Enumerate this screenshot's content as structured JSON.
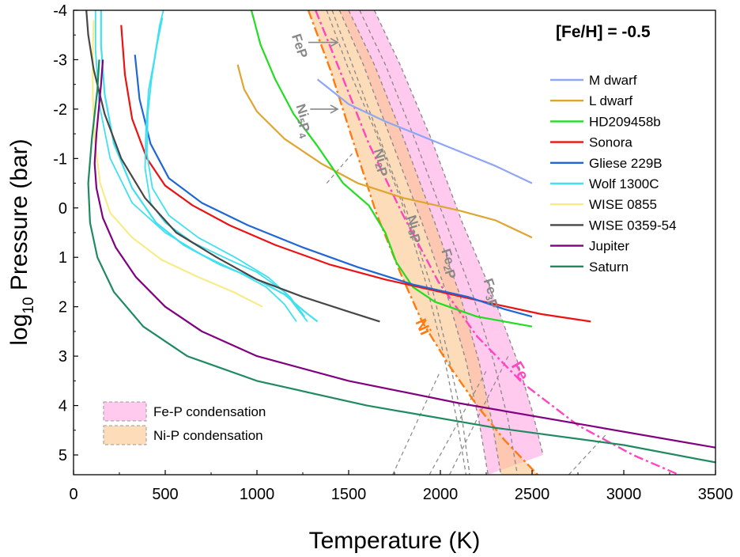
{
  "chart_data": {
    "type": "line",
    "title": "[Fe/H] = -0.5",
    "xlabel": "Temperature (K)",
    "ylabel": {
      "main": "log",
      "sub": "10",
      "rest": " Pressure (bar)"
    },
    "xlim": [
      0,
      3500
    ],
    "ylim": [
      -4,
      5.4
    ],
    "y_inverted": true,
    "x_ticks": [
      0,
      500,
      1000,
      1500,
      2000,
      2500,
      3000,
      3500
    ],
    "y_ticks": [
      -4,
      -3,
      -2,
      -1,
      0,
      1,
      2,
      3,
      4,
      5
    ],
    "series": [
      {
        "name": "M dwarf",
        "color": "#8fa5f5",
        "points": [
          [
            1330,
            -2.6
          ],
          [
            1500,
            -2.1
          ],
          [
            1700,
            -1.75
          ],
          [
            1900,
            -1.45
          ],
          [
            2100,
            -1.15
          ],
          [
            2300,
            -0.85
          ],
          [
            2500,
            -0.5
          ]
        ]
      },
      {
        "name": "L dwarf",
        "color": "#e0a530",
        "points": [
          [
            895,
            -2.9
          ],
          [
            930,
            -2.4
          ],
          [
            1000,
            -1.95
          ],
          [
            1150,
            -1.4
          ],
          [
            1350,
            -0.9
          ],
          [
            1550,
            -0.5
          ],
          [
            1800,
            -0.2
          ],
          [
            2100,
            0.05
          ],
          [
            2300,
            0.25
          ],
          [
            2500,
            0.6
          ]
        ]
      },
      {
        "name": "HD209458b",
        "color": "#22dd22",
        "points": [
          [
            970,
            -4
          ],
          [
            1020,
            -3.3
          ],
          [
            1100,
            -2.6
          ],
          [
            1200,
            -1.9
          ],
          [
            1330,
            -1.25
          ],
          [
            1470,
            -0.5
          ],
          [
            1610,
            -0.05
          ],
          [
            1700,
            0.5
          ],
          [
            1760,
            1.1
          ],
          [
            1850,
            1.6
          ],
          [
            1970,
            1.9
          ],
          [
            2200,
            2.2
          ],
          [
            2500,
            2.4
          ]
        ]
      },
      {
        "name": "Sonora",
        "color": "#ee1111",
        "points": [
          [
            260,
            -3.7
          ],
          [
            280,
            -2.7
          ],
          [
            320,
            -1.8
          ],
          [
            400,
            -1.0
          ],
          [
            500,
            -0.45
          ],
          [
            650,
            -0.05
          ],
          [
            850,
            0.35
          ],
          [
            1100,
            0.75
          ],
          [
            1400,
            1.15
          ],
          [
            1700,
            1.45
          ],
          [
            2000,
            1.7
          ],
          [
            2300,
            1.95
          ],
          [
            2550,
            2.15
          ],
          [
            2820,
            2.3
          ]
        ]
      },
      {
        "name": "Gliese 229B",
        "color": "#1f66d6",
        "points": [
          [
            335,
            -3.1
          ],
          [
            360,
            -2.2
          ],
          [
            420,
            -1.3
          ],
          [
            520,
            -0.6
          ],
          [
            700,
            -0.1
          ],
          [
            950,
            0.35
          ],
          [
            1250,
            0.8
          ],
          [
            1550,
            1.2
          ],
          [
            1850,
            1.55
          ],
          [
            2150,
            1.8
          ],
          [
            2350,
            2.05
          ],
          [
            2500,
            2.2
          ]
        ]
      },
      {
        "name": "Wolf 1300C",
        "color": "#40e0f0",
        "points": [
          [
            150,
            -4
          ],
          [
            150,
            -3.3
          ],
          [
            170,
            -2.3
          ],
          [
            220,
            -1.3
          ],
          [
            320,
            -0.4
          ],
          [
            450,
            0.3
          ],
          [
            600,
            0.75
          ],
          [
            800,
            1.15
          ],
          [
            1000,
            1.45
          ],
          [
            1150,
            1.75
          ],
          [
            1260,
            2.1
          ],
          [
            1330,
            2.3
          ]
        ],
        "extra": [
          [
            [
              120,
              -4
            ],
            [
              120,
              -3.2
            ],
            [
              140,
              -2.1
            ],
            [
              200,
              -1.0
            ],
            [
              320,
              -0.1
            ],
            [
              500,
              0.5
            ],
            [
              700,
              0.95
            ],
            [
              900,
              1.3
            ],
            [
              1050,
              1.6
            ],
            [
              1150,
              1.95
            ],
            [
              1215,
              2.3
            ]
          ],
          [
            [
              490,
              -4
            ],
            [
              470,
              -3.7
            ],
            [
              440,
              -3
            ],
            [
              410,
              -2.4
            ],
            [
              395,
              -1.6
            ],
            [
              390,
              -0.8
            ],
            [
              420,
              -0.1
            ],
            [
              500,
              0.3
            ],
            [
              650,
              0.7
            ],
            [
              850,
              1.05
            ],
            [
              1000,
              1.3
            ],
            [
              1150,
              1.7
            ],
            [
              1275,
              2.3
            ]
          ],
          [
            [
              485,
              -3.85
            ],
            [
              455,
              -3.3
            ],
            [
              425,
              -2.6
            ],
            [
              405,
              -1.9
            ],
            [
              400,
              -1.1
            ],
            [
              430,
              -0.4
            ],
            [
              520,
              0.15
            ],
            [
              680,
              0.6
            ],
            [
              880,
              1.0
            ],
            [
              1060,
              1.4
            ],
            [
              1180,
              1.8
            ],
            [
              1260,
              2.2
            ]
          ]
        ]
      },
      {
        "name": "WISE 0855",
        "color": "#f7ec88",
        "points": [
          [
            110,
            -3.8
          ],
          [
            105,
            -3.2
          ],
          [
            105,
            -2.3
          ],
          [
            115,
            -1.4
          ],
          [
            145,
            -0.5
          ],
          [
            200,
            0.1
          ],
          [
            320,
            0.6
          ],
          [
            480,
            1.05
          ],
          [
            680,
            1.4
          ],
          [
            870,
            1.7
          ],
          [
            1030,
            2.0
          ]
        ]
      },
      {
        "name": "WISE 0359-54",
        "color": "#474747",
        "points": [
          [
            70,
            -4
          ],
          [
            80,
            -3.5
          ],
          [
            110,
            -2.8
          ],
          [
            170,
            -1.9
          ],
          [
            260,
            -1.0
          ],
          [
            390,
            -0.2
          ],
          [
            560,
            0.5
          ],
          [
            780,
            1.0
          ],
          [
            1000,
            1.45
          ],
          [
            1250,
            1.8
          ],
          [
            1500,
            2.1
          ],
          [
            1670,
            2.3
          ]
        ]
      },
      {
        "name": "Jupiter",
        "color": "#800080",
        "points": [
          [
            160,
            -3.0
          ],
          [
            150,
            -2.5
          ],
          [
            125,
            -1.5
          ],
          [
            115,
            -0.9
          ],
          [
            125,
            -0.4
          ],
          [
            160,
            0.2
          ],
          [
            230,
            0.8
          ],
          [
            340,
            1.4
          ],
          [
            500,
            2.0
          ],
          [
            700,
            2.5
          ],
          [
            1000,
            3.0
          ],
          [
            1500,
            3.5
          ],
          [
            2100,
            3.95
          ],
          [
            2800,
            4.4
          ],
          [
            3500,
            4.85
          ]
        ]
      },
      {
        "name": "Saturn",
        "color": "#1f8a60",
        "points": [
          [
            140,
            -3.0
          ],
          [
            130,
            -2.4
          ],
          [
            100,
            -1.4
          ],
          [
            80,
            -0.5
          ],
          [
            90,
            0.3
          ],
          [
            130,
            1.0
          ],
          [
            220,
            1.7
          ],
          [
            380,
            2.4
          ],
          [
            620,
            3.0
          ],
          [
            1000,
            3.5
          ],
          [
            1600,
            4.0
          ],
          [
            2300,
            4.45
          ],
          [
            3000,
            4.8
          ],
          [
            3500,
            5.15
          ]
        ]
      }
    ],
    "condensation_curves": [
      {
        "name": "FeP",
        "color": "#888888",
        "style": "dash",
        "points": [
          [
            1380,
            -4
          ],
          [
            1500,
            -2.8
          ],
          [
            1640,
            -1.6
          ],
          [
            1790,
            -0.1
          ],
          [
            1920,
            1.5
          ],
          [
            2020,
            3.0
          ],
          [
            2090,
            4.3
          ],
          [
            2140,
            5.4
          ]
        ]
      },
      {
        "name": "Ni5P4",
        "color": "#888888",
        "style": "dash",
        "points": [
          [
            1410,
            -4
          ],
          [
            1520,
            -2.9
          ],
          [
            1660,
            -1.5
          ],
          [
            1820,
            0.1
          ],
          [
            1960,
            1.7
          ],
          [
            2050,
            3.1
          ],
          [
            2120,
            4.3
          ],
          [
            2160,
            5.4
          ]
        ]
      },
      {
        "name": "Ni2P",
        "color": "#888888",
        "style": "dash",
        "points": [
          [
            1450,
            -4
          ],
          [
            1580,
            -2.9
          ],
          [
            1730,
            -1.4
          ],
          [
            1900,
            0.3
          ],
          [
            2040,
            1.8
          ],
          [
            2140,
            3.1
          ],
          [
            2210,
            4.3
          ],
          [
            2260,
            5.4
          ]
        ]
      },
      {
        "name": "Ni3P",
        "color": "#888888",
        "style": "dash",
        "points": [
          [
            1500,
            -4
          ],
          [
            1640,
            -2.9
          ],
          [
            1800,
            -1.4
          ],
          [
            1970,
            0.3
          ],
          [
            2110,
            1.8
          ],
          [
            2210,
            3.1
          ],
          [
            2280,
            4.3
          ],
          [
            2330,
            5.4
          ]
        ]
      },
      {
        "name": "Fe2P",
        "color": "#888888",
        "style": "dash",
        "points": [
          [
            1560,
            -4
          ],
          [
            1700,
            -2.9
          ],
          [
            1860,
            -1.4
          ],
          [
            2030,
            0.3
          ],
          [
            2180,
            1.8
          ],
          [
            2290,
            3.1
          ],
          [
            2370,
            4.3
          ],
          [
            2420,
            5.4
          ]
        ]
      },
      {
        "name": "Fe3P",
        "color": "#888888",
        "style": "dash",
        "points": [
          [
            1640,
            -4
          ],
          [
            1780,
            -2.9
          ],
          [
            1950,
            -1.4
          ],
          [
            2120,
            0.3
          ],
          [
            2290,
            1.8
          ],
          [
            2420,
            3.1
          ],
          [
            2500,
            4.1
          ],
          [
            2560,
            5.0
          ]
        ]
      },
      {
        "name": "Ni",
        "color": "#ff7b10",
        "style": "dashdot",
        "points": [
          [
            1280,
            -4
          ],
          [
            1400,
            -2.8
          ],
          [
            1520,
            -1.4
          ],
          [
            1650,
            0.1
          ],
          [
            1780,
            1.3
          ],
          [
            1900,
            2.3
          ],
          [
            2050,
            3.2
          ],
          [
            2200,
            4.0
          ],
          [
            2350,
            4.7
          ],
          [
            2530,
            5.4
          ]
        ]
      },
      {
        "name": "Fe",
        "color": "#ff45c0",
        "style": "dashdot",
        "points": [
          [
            1320,
            -4
          ],
          [
            1450,
            -2.8
          ],
          [
            1610,
            -1.3
          ],
          [
            1790,
            0.1
          ],
          [
            1990,
            1.5
          ],
          [
            2200,
            2.6
          ],
          [
            2450,
            3.55
          ],
          [
            2750,
            4.4
          ],
          [
            3050,
            5.0
          ],
          [
            3300,
            5.4
          ]
        ]
      }
    ],
    "guide_lines": [
      [
        [
          1380,
          -0.5
        ],
        [
          1520,
          -1.1
        ]
      ],
      [
        [
          1740,
          5.4
        ],
        [
          2000,
          3.3
        ]
      ],
      [
        [
          1940,
          5.4
        ],
        [
          2250,
          3.3
        ]
      ],
      [
        [
          2050,
          5.4
        ],
        [
          2370,
          3.0
        ]
      ],
      [
        [
          2700,
          5.4
        ],
        [
          2900,
          4.6
        ]
      ]
    ],
    "regions": [
      {
        "name": "Fe-P condensation",
        "fill": "#ff9fe0",
        "opacity": 0.55,
        "left": "Ni2P",
        "right": "Fe3P"
      },
      {
        "name": "Ni-P condensation",
        "fill": "#fbc58a",
        "opacity": 0.6,
        "left": "Ni",
        "right": "Ni3P"
      }
    ],
    "curve_labels": [
      {
        "text": "FeP",
        "color": "#888888",
        "kind": "band",
        "x": 1210,
        "y": -3.25,
        "rot": 72
      },
      {
        "text": "Ni5P4",
        "color": "#888888",
        "kind": "band",
        "x": 1240,
        "y": -1.75,
        "rot": 72
      },
      {
        "text": "Ni2P",
        "color": "#888888",
        "kind": "band",
        "x": 1660,
        "y": -0.9,
        "rot": 72
      },
      {
        "text": "Ni3P",
        "color": "#888888",
        "kind": "band",
        "x": 1840,
        "y": 0.45,
        "rot": 72
      },
      {
        "text": "Fe2P",
        "color": "#888888",
        "kind": "band",
        "x": 2030,
        "y": 1.15,
        "rot": 72
      },
      {
        "text": "Fe3P",
        "color": "#888888",
        "kind": "band",
        "x": 2260,
        "y": 1.75,
        "rot": 72
      },
      {
        "text": "Ni",
        "color": "#ff7b10",
        "kind": "metal",
        "x": 1880,
        "y": 2.45,
        "rot": 66
      },
      {
        "text": "Fe",
        "color": "#ff45c0",
        "kind": "metal",
        "x": 2410,
        "y": 3.35,
        "rot": 60
      }
    ],
    "arrows": [
      {
        "from": [
          1280,
          -3.35
        ],
        "to": [
          1440,
          -3.35
        ]
      },
      {
        "from": [
          1290,
          -2.0
        ],
        "to": [
          1440,
          -2.0
        ]
      }
    ],
    "legend_position": "right",
    "region_legend_position": "bottom-left"
  }
}
